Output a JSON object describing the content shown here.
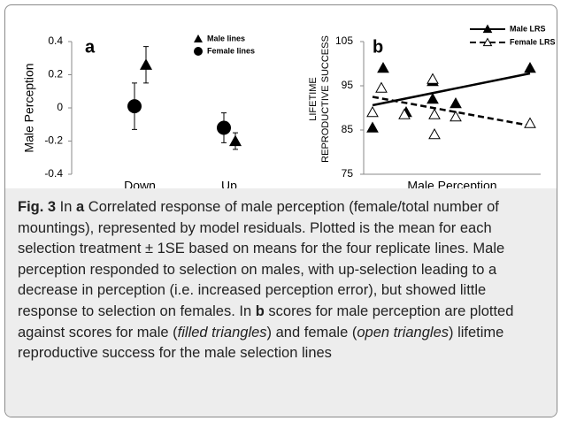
{
  "chart_data": [
    {
      "type": "errorbar",
      "panel_label": "a",
      "ylabel": "Male Perception",
      "categories": [
        "Down",
        "Up"
      ],
      "series": [
        {
          "name": "Male lines",
          "marker": "triangle",
          "color": "#000000",
          "values": [
            0.26,
            -0.2
          ],
          "errors": [
            0.11,
            0.05
          ]
        },
        {
          "name": "Female lines",
          "marker": "circle",
          "color": "#000000",
          "values": [
            0.01,
            -0.12
          ],
          "errors": [
            0.14,
            0.09
          ]
        }
      ],
      "ylim": [
        -0.4,
        0.4
      ],
      "yticks": [
        -0.4,
        -0.2,
        0,
        0.2,
        0.4
      ]
    },
    {
      "type": "scatter",
      "panel_label": "b",
      "xlabel": "Male Perception",
      "ylabel": [
        "LIFETIME",
        "REPRODUCTIVE SUCCESS"
      ],
      "xlim": [
        0,
        10
      ],
      "ylim": [
        75,
        105
      ],
      "yticks": [
        75,
        85,
        95,
        105
      ],
      "series": [
        {
          "name": "Male LRS",
          "marker": "filled-triangle",
          "line": "solid",
          "color": "#000000",
          "x": [
            0.5,
            1.1,
            2.4,
            3.9,
            3.9,
            5.2,
            9.4
          ],
          "values": [
            85.5,
            99,
            89,
            96,
            92,
            91,
            99
          ],
          "trend_x": [
            0.5,
            9.4
          ],
          "trend_values": [
            90.6,
            97.8
          ]
        },
        {
          "name": "Female LRS",
          "marker": "open-triangle",
          "line": "dashed",
          "color": "#000000",
          "x": [
            0.5,
            1.0,
            2.3,
            3.9,
            4.0,
            4.0,
            5.2,
            9.4
          ],
          "values": [
            89,
            94.5,
            88.5,
            96.5,
            88.5,
            84,
            88,
            86.5
          ],
          "trend_x": [
            0.5,
            9.4
          ],
          "trend_values": [
            92.5,
            86
          ]
        }
      ]
    }
  ],
  "caption": [
    {
      "text": "Fig. 3",
      "style": "bold"
    },
    {
      "text": " In ",
      "style": "normal"
    },
    {
      "text": "a",
      "style": "bold"
    },
    {
      "text": " Correlated response of male perception (female/total number of mountings), represented by model residuals. Plotted is the mean for each selection treatment ± 1SE based on means for the four replicate lines. Male perception responded to selection on males, with up-selection leading to a decrease in perception (i.e. increased perception error), but showed little response to selection on females. In ",
      "style": "normal"
    },
    {
      "text": "b",
      "style": "bold"
    },
    {
      "text": " scores for male perception are plotted against scores for male (",
      "style": "normal"
    },
    {
      "text": "filled triangles",
      "style": "italic"
    },
    {
      "text": ") and female (",
      "style": "normal"
    },
    {
      "text": "open triangles",
      "style": "italic"
    },
    {
      "text": ") lifetime reproductive success for the male selection lines",
      "style": "normal"
    }
  ]
}
